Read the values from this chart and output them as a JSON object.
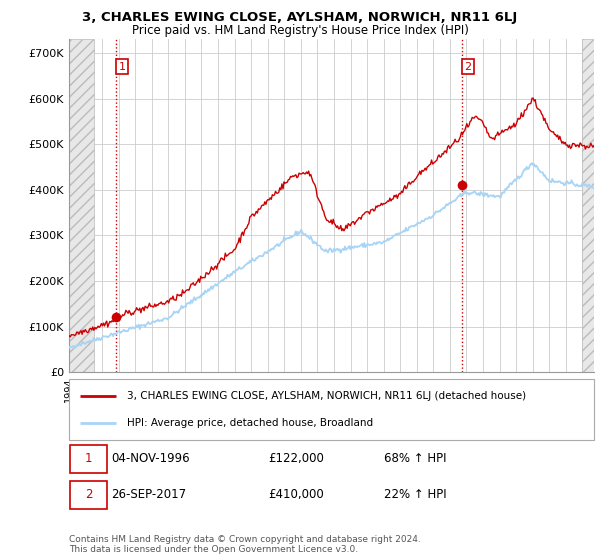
{
  "title": "3, CHARLES EWING CLOSE, AYLSHAM, NORWICH, NR11 6LJ",
  "subtitle": "Price paid vs. HM Land Registry's House Price Index (HPI)",
  "ylim": [
    0,
    730000
  ],
  "yticks": [
    0,
    100000,
    200000,
    300000,
    400000,
    500000,
    600000,
    700000
  ],
  "ytick_labels": [
    "£0",
    "£100K",
    "£200K",
    "£300K",
    "£400K",
    "£500K",
    "£600K",
    "£700K"
  ],
  "sale1": {
    "date_num": 1996.84,
    "price": 122000,
    "label": "1"
  },
  "sale2": {
    "date_num": 2017.73,
    "price": 410000,
    "label": "2"
  },
  "legend_line1": "3, CHARLES EWING CLOSE, AYLSHAM, NORWICH, NR11 6LJ (detached house)",
  "legend_line2": "HPI: Average price, detached house, Broadland",
  "footer": "Contains HM Land Registry data © Crown copyright and database right 2024.\nThis data is licensed under the Open Government Licence v3.0.",
  "hpi_color": "#a8d4f5",
  "price_color": "#cc0000",
  "vline_color": "#cc0000",
  "grid_color": "#cccccc",
  "hatch_left_end": 1995.5,
  "hatch_right_start": 2025.0,
  "xlim": [
    1994,
    2025.7
  ],
  "x_start_year": 1994,
  "x_end_year": 2025
}
